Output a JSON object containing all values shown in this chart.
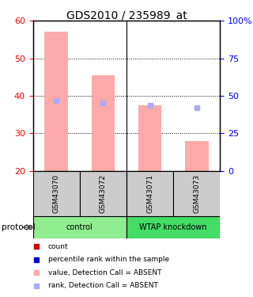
{
  "title": "GDS2010 / 235989_at",
  "samples": [
    "GSM43070",
    "GSM43072",
    "GSM43071",
    "GSM43073"
  ],
  "bar_values": [
    57.0,
    45.5,
    37.5,
    28.0
  ],
  "rank_values": [
    47.0,
    45.5,
    43.5,
    42.0
  ],
  "ylim_left": [
    20,
    60
  ],
  "ylim_right": [
    0,
    100
  ],
  "yticks_left": [
    20,
    30,
    40,
    50,
    60
  ],
  "yticks_right": [
    0,
    25,
    50,
    75,
    100
  ],
  "yticklabels_right": [
    "0",
    "25",
    "50",
    "75",
    "100%"
  ],
  "bar_color": "#ffaaaa",
  "rank_color": "#aaaaff",
  "group_colors": {
    "control": "#90ee90",
    "WTAP knockdown": "#44dd66"
  },
  "sample_bg_color": "#cccccc",
  "legend_items": [
    {
      "color": "#cc0000",
      "label": "count"
    },
    {
      "color": "#0000cc",
      "label": "percentile rank within the sample"
    },
    {
      "color": "#ffaaaa",
      "label": "value, Detection Call = ABSENT"
    },
    {
      "color": "#aaaaff",
      "label": "rank, Detection Call = ABSENT"
    }
  ]
}
